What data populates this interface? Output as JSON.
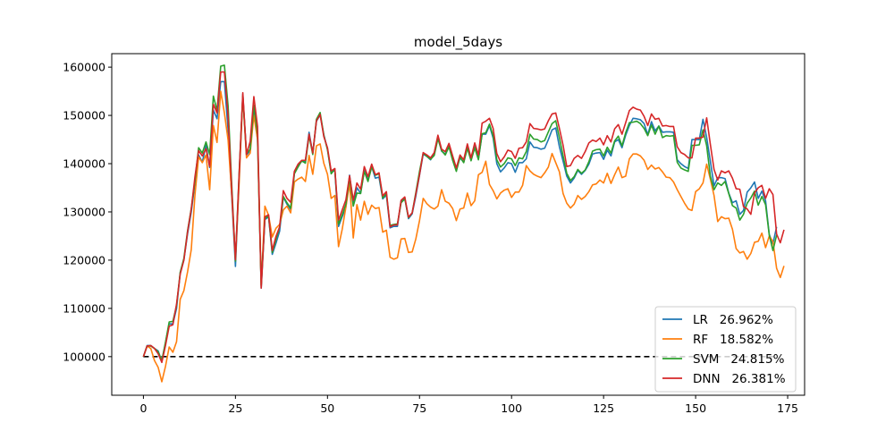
{
  "chart_data": {
    "type": "line",
    "title": "model_5days",
    "xlabel": "",
    "ylabel": "",
    "xlim": [
      -8.6,
      179.6
    ],
    "ylim": [
      92000,
      162800
    ],
    "xticks": [
      0,
      25,
      50,
      75,
      100,
      125,
      150,
      175
    ],
    "yticks": [
      100000,
      110000,
      120000,
      130000,
      140000,
      150000,
      160000
    ],
    "grid": false,
    "legend_position": "lower-right",
    "baseline": {
      "y": 100000,
      "style": "dashed",
      "color": "#000000"
    },
    "series": [
      {
        "name": "LR   26.962%",
        "color": "#1f77b4",
        "values": [
          100000,
          102300,
          102300,
          101700,
          101200,
          99000,
          102900,
          106800,
          106800,
          110000,
          117400,
          120100,
          125500,
          130000,
          136000,
          141800,
          140300,
          143800,
          139200,
          151100,
          149300,
          157000,
          157000,
          147000,
          133000,
          118700,
          137000,
          154400,
          141800,
          142700,
          151200,
          145100,
          114200,
          128400,
          129000,
          121200,
          123500,
          126000,
          133100,
          131600,
          130500,
          138000,
          139600,
          140500,
          140500,
          146500,
          142100,
          148800,
          150100,
          146000,
          143000,
          138200,
          138600,
          127000,
          129000,
          131000,
          137600,
          131700,
          135000,
          133900,
          138600,
          136600,
          139400,
          137000,
          137200,
          132700,
          133500,
          126700,
          127000,
          127000,
          132300,
          132900,
          128600,
          129600,
          133300,
          137600,
          142000,
          141500,
          140800,
          142200,
          145500,
          142600,
          142000,
          143800,
          140800,
          138800,
          141200,
          140300,
          143800,
          140800,
          143500,
          141000,
          146100,
          146100,
          147900,
          145300,
          140000,
          138300,
          139100,
          140200,
          140000,
          138200,
          140200,
          140200,
          141000,
          144500,
          143400,
          143300,
          143000,
          143200,
          145000,
          147000,
          147400,
          143500,
          140500,
          137400,
          136000,
          137000,
          138600,
          137800,
          138600,
          139900,
          142000,
          142200,
          142300,
          140900,
          142800,
          141600,
          144500,
          145000,
          143300,
          145900,
          147900,
          149400,
          149300,
          149100,
          148300,
          146000,
          148700,
          146800,
          147800,
          146500,
          146600,
          146600,
          146500,
          140800,
          140000,
          139400,
          139000,
          145000,
          145000,
          145000,
          149200,
          145400,
          140500,
          135400,
          137100,
          137100,
          136900,
          133900,
          131900,
          132300,
          129500,
          130300,
          134100,
          135000,
          136200,
          132800,
          134300,
          132300,
          125300,
          123400,
          126900
        ]
      },
      {
        "name": "RF   18.582%",
        "color": "#ff7f0e",
        "values": [
          100000,
          102200,
          101700,
          99200,
          97800,
          94800,
          98000,
          102000,
          100900,
          103100,
          111900,
          113700,
          117600,
          122200,
          133500,
          141400,
          140200,
          141800,
          134600,
          147900,
          144400,
          155000,
          150500,
          144900,
          133500,
          120000,
          136000,
          154100,
          141200,
          142200,
          150000,
          145000,
          114600,
          131200,
          129300,
          124800,
          126600,
          127400,
          130400,
          131200,
          129800,
          136200,
          136800,
          137200,
          136300,
          141700,
          137800,
          143700,
          144100,
          140100,
          137800,
          132800,
          133400,
          122800,
          126400,
          131000,
          136000,
          124600,
          131500,
          128300,
          132200,
          129500,
          131400,
          130700,
          130900,
          125800,
          126200,
          120600,
          120200,
          120500,
          124400,
          124500,
          121600,
          121700,
          124400,
          128200,
          132800,
          131700,
          131000,
          130600,
          131200,
          134600,
          132200,
          131800,
          130700,
          128200,
          130600,
          130800,
          133900,
          131300,
          132300,
          137700,
          138200,
          140500,
          135700,
          134400,
          132700,
          133900,
          134500,
          134800,
          133000,
          134100,
          134100,
          135500,
          139600,
          138500,
          137800,
          137400,
          137100,
          138100,
          139300,
          142100,
          140200,
          138300,
          133800,
          131800,
          130800,
          131600,
          133400,
          132600,
          133200,
          134200,
          135600,
          135800,
          136600,
          136000,
          138000,
          135900,
          137700,
          139300,
          137100,
          137400,
          141000,
          142000,
          142000,
          141600,
          140700,
          138800,
          139700,
          138900,
          139200,
          138300,
          137200,
          137100,
          136200,
          134600,
          133200,
          131800,
          130600,
          130300,
          134200,
          134800,
          136000,
          139900,
          136800,
          133400,
          128000,
          129000,
          128600,
          128700,
          126400,
          122400,
          121500,
          121800,
          120200,
          121400,
          123700,
          123900,
          125600,
          122600,
          125000,
          123900,
          118300,
          116400,
          118800
        ]
      },
      {
        "name": "SVM   24.815%",
        "color": "#2ca02c",
        "values": [
          100000,
          102200,
          102200,
          101700,
          101000,
          99200,
          103000,
          107200,
          107300,
          110600,
          117500,
          120400,
          126100,
          130700,
          136500,
          143300,
          142200,
          144500,
          141900,
          154000,
          151000,
          160200,
          160400,
          152000,
          135500,
          119800,
          138000,
          154000,
          142000,
          143000,
          152100,
          146000,
          114800,
          128700,
          129100,
          121600,
          124300,
          126900,
          133200,
          131900,
          130800,
          137900,
          139300,
          140600,
          140100,
          145800,
          141900,
          149200,
          150600,
          145900,
          142900,
          137900,
          138900,
          127500,
          129400,
          131600,
          137200,
          131200,
          133900,
          133800,
          138400,
          136300,
          139300,
          137600,
          137900,
          132900,
          133800,
          127200,
          127400,
          127500,
          131900,
          132700,
          128800,
          129800,
          134000,
          138400,
          142200,
          141500,
          140900,
          141700,
          145200,
          142700,
          141800,
          143500,
          140700,
          138400,
          141400,
          140200,
          143200,
          140600,
          143300,
          140800,
          146200,
          146400,
          148200,
          145800,
          140800,
          139300,
          140000,
          141200,
          141000,
          139600,
          141200,
          141000,
          142500,
          146100,
          145100,
          145000,
          144500,
          144800,
          146600,
          148300,
          148900,
          145400,
          141600,
          138000,
          136500,
          137300,
          138800,
          138000,
          138700,
          140400,
          142600,
          142900,
          143000,
          141600,
          143400,
          142200,
          144700,
          145700,
          143700,
          146400,
          148500,
          148600,
          148800,
          148300,
          147300,
          145800,
          148000,
          146100,
          147800,
          145400,
          145800,
          145700,
          145800,
          140300,
          139100,
          138700,
          138400,
          143800,
          143800,
          143900,
          147000,
          143700,
          137400,
          134600,
          136000,
          135500,
          136300,
          133800,
          131300,
          130800,
          128300,
          129500,
          131800,
          132900,
          134300,
          131400,
          133200,
          131500,
          125200,
          122000,
          125200
        ]
      },
      {
        "name": "DNN   26.381%",
        "color": "#d62728",
        "values": [
          100000,
          102200,
          102300,
          101700,
          100600,
          98800,
          102300,
          106300,
          106600,
          110900,
          117100,
          120000,
          125900,
          130600,
          137300,
          142700,
          141600,
          143100,
          139400,
          152300,
          150500,
          159000,
          159000,
          149900,
          134400,
          120100,
          137700,
          154700,
          141900,
          144600,
          153900,
          147700,
          114200,
          129000,
          129400,
          122000,
          124900,
          126900,
          134400,
          132800,
          132000,
          138400,
          139900,
          140700,
          140700,
          146100,
          142200,
          148900,
          150200,
          145600,
          143300,
          138500,
          139000,
          128300,
          130400,
          132500,
          137500,
          132400,
          136000,
          134700,
          139400,
          137300,
          139900,
          137700,
          138100,
          133300,
          134200,
          126900,
          127300,
          127300,
          132400,
          133100,
          128900,
          129800,
          133700,
          137700,
          142300,
          141800,
          141200,
          142300,
          145900,
          143000,
          142500,
          144200,
          141600,
          139100,
          141800,
          140800,
          144100,
          141200,
          144300,
          141800,
          148400,
          148800,
          149400,
          147300,
          142100,
          140400,
          141400,
          142800,
          142500,
          141100,
          143200,
          143300,
          144500,
          148300,
          147300,
          147200,
          147000,
          147200,
          148900,
          150300,
          150500,
          147300,
          143800,
          139400,
          139600,
          141100,
          141700,
          141100,
          142500,
          144300,
          144900,
          144600,
          145300,
          143900,
          145800,
          144500,
          147200,
          148100,
          146100,
          148500,
          151000,
          151700,
          151300,
          151100,
          149800,
          147900,
          150300,
          149200,
          149400,
          147800,
          147900,
          147700,
          147700,
          143500,
          142300,
          141900,
          141200,
          141200,
          145300,
          145300,
          145500,
          149500,
          144000,
          138800,
          136600,
          138500,
          138100,
          138500,
          137000,
          134800,
          134700,
          131100,
          130600,
          129500,
          133900,
          135000,
          135500,
          132800,
          134800,
          133600,
          125400,
          123600,
          126300
        ]
      }
    ]
  }
}
